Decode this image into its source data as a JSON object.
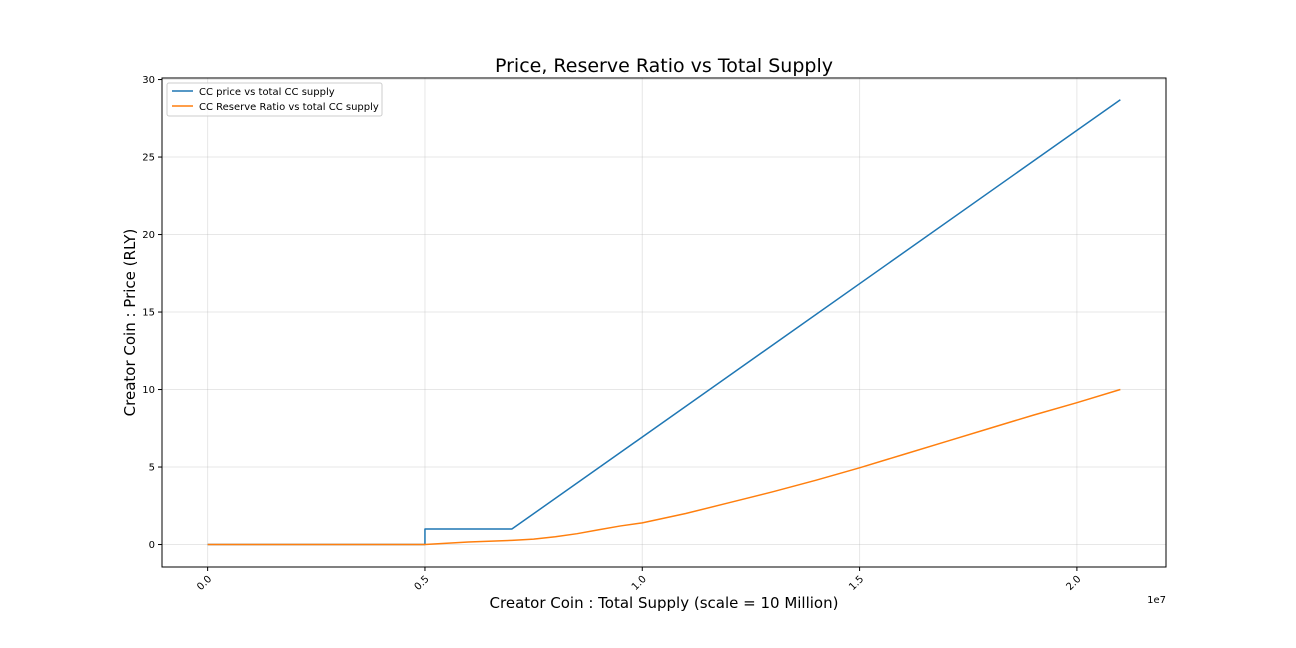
{
  "chart_data": {
    "type": "line",
    "title": "Price, Reserve Ratio vs Total Supply",
    "xlabel": "Creator Coin : Total Supply (scale = 10 Million)",
    "ylabel": "Creator Coin : Price (RLY)",
    "x_offset_label": "1e7",
    "xlim": [
      -0.105,
      2.205
    ],
    "ylim": [
      -1.45,
      30.1
    ],
    "x_ticks": [
      0.0,
      0.5,
      1.0,
      1.5,
      2.0
    ],
    "x_tick_labels": [
      "0.0",
      "0.5",
      "1.0",
      "1.5",
      "2.0"
    ],
    "y_ticks": [
      0,
      5,
      10,
      15,
      20,
      25,
      30
    ],
    "y_tick_labels": [
      "0",
      "5",
      "10",
      "15",
      "20",
      "25",
      "30"
    ],
    "grid": true,
    "legend_position": "upper-left",
    "series": [
      {
        "name": "CC price vs total CC supply",
        "color": "#1f77b4",
        "x": [
          0.0,
          0.5,
          0.5,
          0.7,
          2.1
        ],
        "y": [
          0.0,
          0.0,
          1.0,
          1.0,
          28.7
        ]
      },
      {
        "name": "CC Reserve Ratio vs total CC supply",
        "color": "#ff7f0e",
        "x": [
          0.0,
          0.5,
          0.6,
          0.7,
          0.75,
          0.8,
          0.85,
          0.9,
          0.95,
          1.0,
          1.1,
          1.2,
          1.3,
          1.4,
          1.5,
          1.6,
          1.7,
          1.8,
          1.9,
          2.0,
          2.1
        ],
        "y": [
          0.0,
          0.0,
          0.16,
          0.27,
          0.35,
          0.5,
          0.7,
          0.95,
          1.2,
          1.4,
          2.0,
          2.7,
          3.4,
          4.15,
          4.95,
          5.8,
          6.65,
          7.5,
          8.35,
          9.15,
          10.0
        ]
      }
    ]
  }
}
